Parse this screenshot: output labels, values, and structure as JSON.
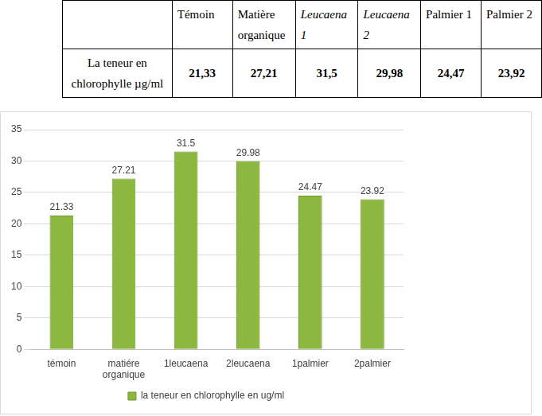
{
  "table": {
    "header": [
      "",
      "Témoin",
      "Matière organique",
      "Leucaena 1",
      "Leucaena 2",
      "Palmier 1",
      "Palmier 2"
    ],
    "rows": [
      [
        "La teneur en chlorophylle µg/ml",
        "21,33",
        "27,21",
        "31,5",
        "29,98",
        "24,47",
        "23,92"
      ]
    ]
  },
  "chart_data": {
    "type": "bar",
    "categories": [
      "témoin",
      "matiére organique",
      "1leucaena",
      "2leucaena",
      "1palmier",
      "2palmier"
    ],
    "series": [
      {
        "name": "la teneur en chlorophylle en ug/ml",
        "color": "#8db83f",
        "values": [
          21.33,
          27.21,
          31.5,
          29.98,
          24.47,
          23.92
        ]
      }
    ],
    "ylim": [
      0,
      35
    ],
    "yticks": [
      0,
      5,
      10,
      15,
      20,
      25,
      30,
      35
    ],
    "grid": true,
    "legend": "bottom",
    "data_labels": true
  }
}
